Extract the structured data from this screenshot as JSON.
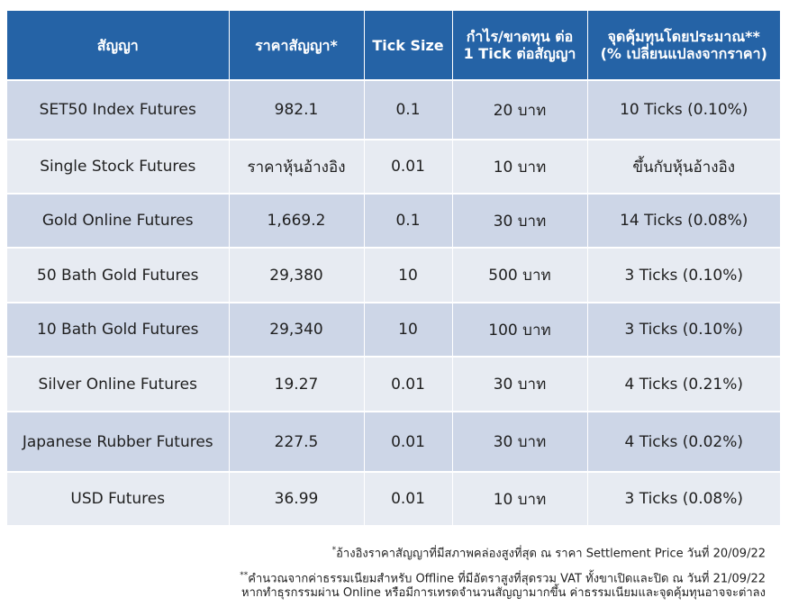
{
  "table": {
    "headers": [
      [
        "สัญญา"
      ],
      [
        "ราคาสัญญา*"
      ],
      [
        "Tick Size"
      ],
      [
        "กำไร/ขาดทุน ต่อ",
        "1 Tick ต่อสัญญา"
      ],
      [
        "จุดคุ้มทุนโดยประมาณ**",
        "(% เปลี่ยนแปลงจากราคา)"
      ]
    ],
    "rows": [
      [
        "SET50 Index Futures",
        "982.1",
        "0.1",
        "20 บาท",
        "10 Ticks (0.10%)"
      ],
      [
        "Single Stock Futures",
        "ราคาหุ้นอ้างอิง",
        "0.01",
        "10 บาท",
        "ขึ้นกับหุ้นอ้างอิง"
      ],
      [
        "Gold Online Futures",
        "1,669.2",
        "0.1",
        "30 บาท",
        "14 Ticks (0.08%)"
      ],
      [
        "50 Bath Gold Futures",
        "29,380",
        "10",
        "500 บาท",
        "3 Ticks (0.10%)"
      ],
      [
        "10 Bath Gold Futures",
        "29,340",
        "10",
        "100 บาท",
        "3 Ticks (0.10%)"
      ],
      [
        "Silver Online Futures",
        "19.27",
        "0.01",
        "30 บาท",
        "4 Ticks (0.21%)"
      ],
      [
        "Japanese Rubber Futures",
        "227.5",
        "0.01",
        "30 บาท",
        "4 Ticks (0.02%)"
      ],
      [
        "USD Futures",
        "36.99",
        "0.01",
        "10 บาท",
        "3 Ticks (0.08%)"
      ]
    ]
  },
  "colors": {
    "header_bg": "#2563a6",
    "row_odd_bg": "#cdd6e7",
    "row_even_bg": "#e7ebf2"
  },
  "notes": {
    "note1_mark": "*",
    "note1_text": "อ้างอิงราคาสัญญาที่มีสภาพคล่องสูงที่สุด ณ ราคา Settlement Price วันที่ 20/09/22",
    "note2_mark": "**",
    "note2_line1": "คำนวณจากค่าธรรมเนียมสำหรับ Offline ที่มีอัตราสูงที่สุดรวม VAT ทั้งขาเปิดและปิด ณ วันที่ 21/09/22",
    "note2_line2": "หากทำธุรกรรมผ่าน Online หรือมีการเทรดจำนวนสัญญามากขึ้น ค่าธรรมเนียมและจุดคุ้มทุนอาจจะต่าลง"
  }
}
